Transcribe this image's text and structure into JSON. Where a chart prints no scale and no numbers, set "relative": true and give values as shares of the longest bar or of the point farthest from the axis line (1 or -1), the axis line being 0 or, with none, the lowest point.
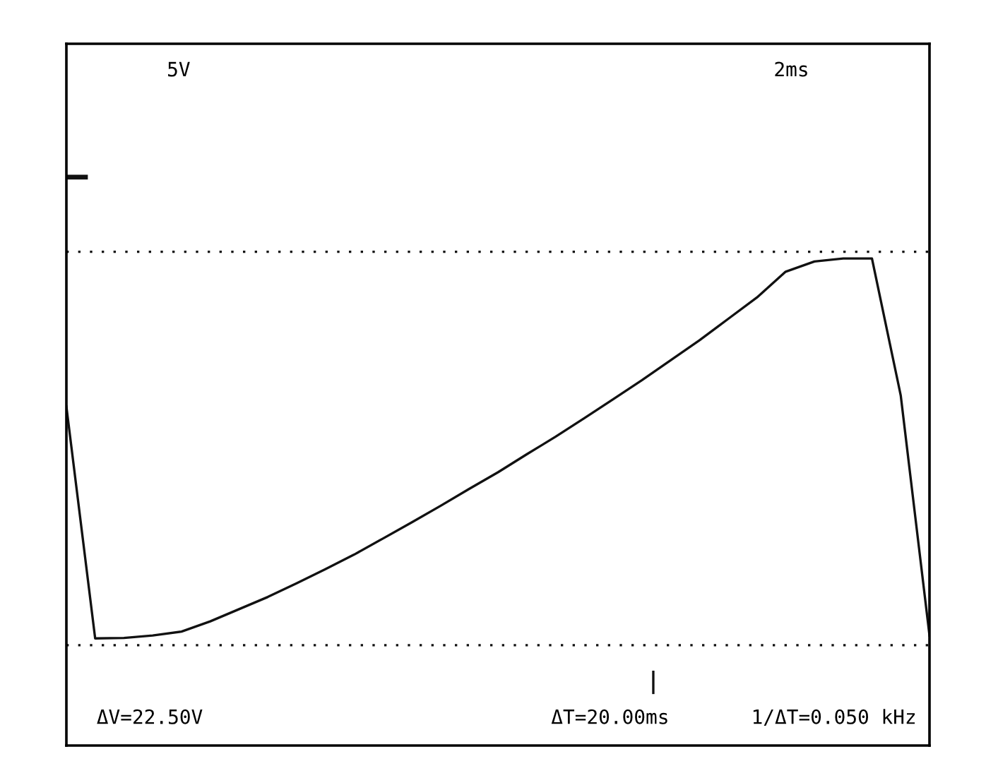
{
  "chart_data": {
    "type": "line",
    "relative": true,
    "categories": [
      null,
      null,
      null,
      null,
      null,
      null,
      null,
      null,
      null,
      null,
      null,
      null,
      null,
      null,
      null,
      null,
      null,
      null,
      null,
      null,
      null,
      null,
      null,
      null,
      null,
      null,
      null,
      null,
      null,
      null,
      null
    ],
    "series": [
      {
        "color": "#111111",
        "values": [
          0.696,
          0.22,
          0.221,
          0.226,
          0.234,
          0.255,
          0.28,
          0.305,
          0.333,
          0.362,
          0.392,
          0.425,
          0.458,
          0.492,
          0.527,
          0.561,
          0.598,
          0.634,
          0.672,
          0.711,
          0.75,
          0.791,
          0.832,
          0.876,
          0.92,
          0.973,
          0.994,
          1,
          1,
          0.719,
          0.226
        ]
      }
    ],
    "ref_lines": [
      {
        "axis": "y",
        "value": 1.014,
        "line_style": "dotted",
        "color": "#111111"
      },
      {
        "axis": "y",
        "value": 0.206,
        "line_style": "dotted",
        "color": "#111111"
      }
    ],
    "annotations": [
      "5V",
      "2ms",
      "ΔV=22.50V",
      "ΔT=20.00ms",
      "1/ΔT=0.050 kHz"
    ]
  }
}
